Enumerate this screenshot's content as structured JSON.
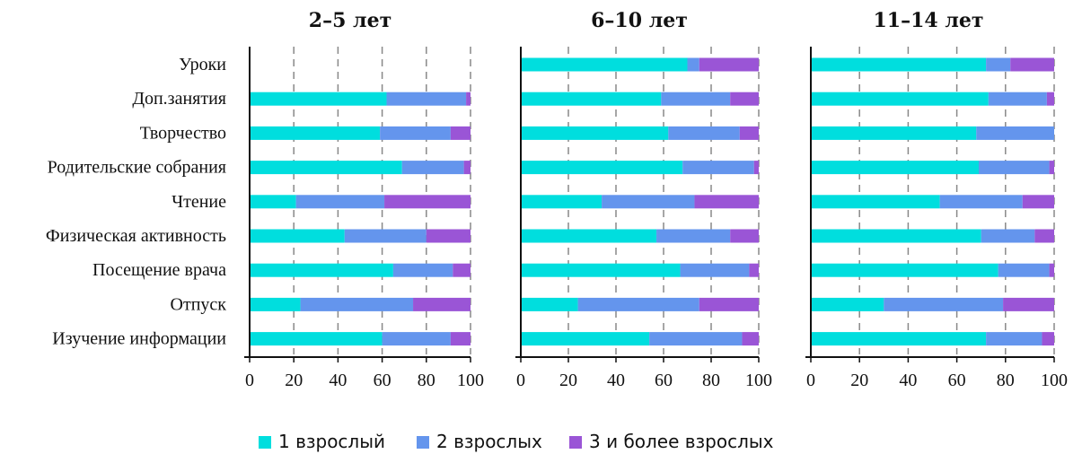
{
  "chart_data": {
    "type": "bar",
    "stacked": true,
    "orientation": "horizontal",
    "categories": [
      "Уроки",
      "Доп.занятия",
      "Творчество",
      "Родительские собрания",
      "Чтение",
      "Физическая активность",
      "Посещение врача",
      "Отпуск",
      "Изучение информации"
    ],
    "series_names": [
      "1 взрослый",
      "2 взрослых",
      "3 и более взрослых"
    ],
    "colors": [
      "#00dede",
      "#6495ed",
      "#9a55d6"
    ],
    "xlim": [
      0,
      100
    ],
    "xticks": [
      "0",
      "20",
      "40",
      "60",
      "80",
      "100"
    ],
    "grid": "vertical dashed",
    "legend_position": "bottom",
    "panels": [
      {
        "title": "2–5 лет",
        "series": [
          {
            "name": "1 взрослый",
            "values": [
              0,
              62,
              59,
              69,
              21,
              43,
              65,
              23,
              60
            ]
          },
          {
            "name": "2 взрослых",
            "values": [
              0,
              36,
              32,
              28,
              40,
              37,
              27,
              51,
              31
            ]
          },
          {
            "name": "3 и более взрослых",
            "values": [
              0,
              2,
              9,
              3,
              39,
              20,
              8,
              26,
              9
            ]
          }
        ]
      },
      {
        "title": "6–10 лет",
        "series": [
          {
            "name": "1 взрослый",
            "values": [
              70,
              59,
              62,
              68,
              34,
              57,
              67,
              24,
              54
            ]
          },
          {
            "name": "2 взрослых",
            "values": [
              5,
              29,
              30,
              30,
              39,
              31,
              29,
              51,
              39
            ]
          },
          {
            "name": "3 и более взрослых",
            "values": [
              25,
              12,
              8,
              2,
              27,
              12,
              4,
              25,
              7
            ]
          }
        ]
      },
      {
        "title": "11–14 лет",
        "series": [
          {
            "name": "1 взрослый",
            "values": [
              72,
              73,
              68,
              69,
              53,
              70,
              77,
              30,
              72
            ]
          },
          {
            "name": "2 взрослых",
            "values": [
              10,
              24,
              32,
              29,
              34,
              22,
              21,
              49,
              23
            ]
          },
          {
            "name": "3 и более взрослых",
            "values": [
              18,
              3,
              0,
              2,
              13,
              8,
              2,
              21,
              5
            ]
          }
        ]
      }
    ]
  }
}
